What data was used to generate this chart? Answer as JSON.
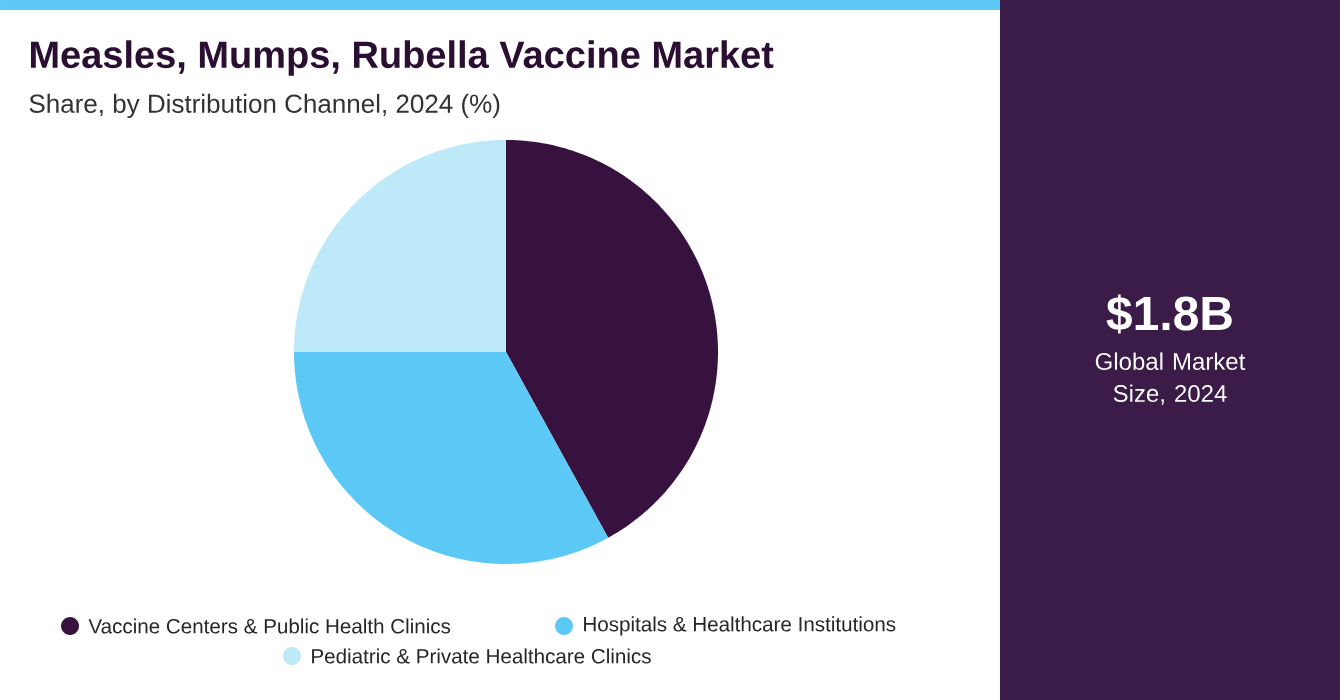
{
  "chart_data": {
    "type": "pie",
    "title": "Measles, Mumps, Rubella Vaccine Market",
    "subtitle": "Share, by Distribution Channel, 2024 (%)",
    "categories": [
      "Vaccine Centers & Public Health Clinics",
      "Hospitals & Healthcare Institutions",
      "Pediatric & Private Healthcare Clinics"
    ],
    "values": [
      42,
      33,
      25
    ],
    "colors": [
      "#37123f",
      "#5bc8f5",
      "#bde9f9"
    ],
    "legend": "bottom",
    "annotations": [
      "$1.8B",
      "Global Market Size, 2024"
    ]
  }
}
